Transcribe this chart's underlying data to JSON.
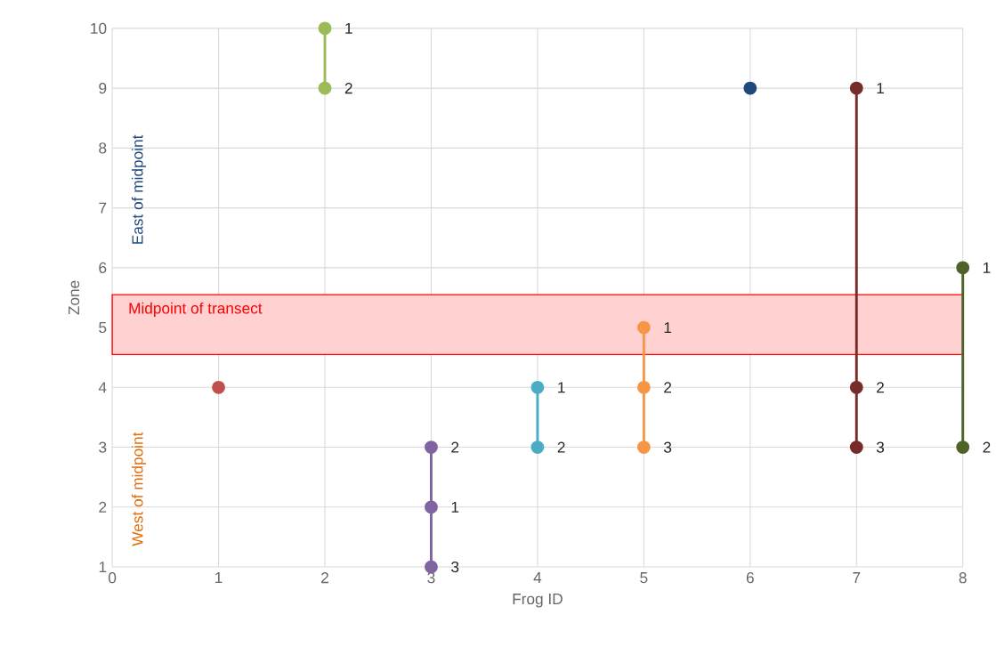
{
  "chart_data": {
    "type": "line",
    "xlabel": "Frog ID",
    "ylabel": "Zone",
    "xlim": [
      0,
      8
    ],
    "xticks": [
      0,
      1,
      2,
      3,
      4,
      5,
      6,
      7,
      8
    ],
    "ylim": [
      1,
      10
    ],
    "yticks": [
      1,
      2,
      3,
      4,
      5,
      6,
      7,
      8,
      9,
      10
    ],
    "grid": true,
    "marker": "circle",
    "line_style": "solid",
    "series": [
      {
        "color": "#c0504d",
        "x": [
          1
        ],
        "values": [
          4
        ]
      },
      {
        "color": "#9bbb59",
        "x": [
          2,
          2
        ],
        "values": [
          10,
          9
        ]
      },
      {
        "color": "#8064a2",
        "x": [
          3,
          3,
          3
        ],
        "values": [
          3,
          2,
          1
        ]
      },
      {
        "color": "#4bacc6",
        "x": [
          4,
          4
        ],
        "values": [
          4,
          3
        ]
      },
      {
        "color": "#f79646",
        "x": [
          5,
          5,
          5
        ],
        "values": [
          5,
          4,
          3
        ]
      },
      {
        "color": "#1f497d",
        "x": [
          6
        ],
        "values": [
          9
        ]
      },
      {
        "color": "#772c2a",
        "x": [
          7,
          7,
          7
        ],
        "values": [
          9,
          4,
          3
        ]
      },
      {
        "color": "#4f6228",
        "x": [
          8,
          8
        ],
        "values": [
          6,
          3
        ]
      }
    ],
    "bands": [
      {
        "axis": "y",
        "from": 4.55,
        "to": 5.55,
        "label": "Midpoint of transect",
        "color": "#ff0000"
      }
    ],
    "annotations": [
      "East of midpoint",
      "West of midpoint",
      {
        "text": "1",
        "x": 2,
        "y": 10
      },
      {
        "text": "2",
        "x": 2,
        "y": 9
      },
      {
        "text": "2",
        "x": 3,
        "y": 3
      },
      {
        "text": "1",
        "x": 3,
        "y": 2
      },
      {
        "text": "3",
        "x": 3,
        "y": 1
      },
      {
        "text": "1",
        "x": 4,
        "y": 4
      },
      {
        "text": "2",
        "x": 4,
        "y": 3
      },
      {
        "text": "1",
        "x": 5,
        "y": 5
      },
      {
        "text": "2",
        "x": 5,
        "y": 4
      },
      {
        "text": "3",
        "x": 5,
        "y": 3
      },
      {
        "text": "1",
        "x": 7,
        "y": 9
      },
      {
        "text": "2",
        "x": 7,
        "y": 4
      },
      {
        "text": "3",
        "x": 7,
        "y": 3
      },
      {
        "text": "1",
        "x": 8,
        "y": 6
      },
      {
        "text": "2",
        "x": 8,
        "y": 3
      }
    ]
  }
}
